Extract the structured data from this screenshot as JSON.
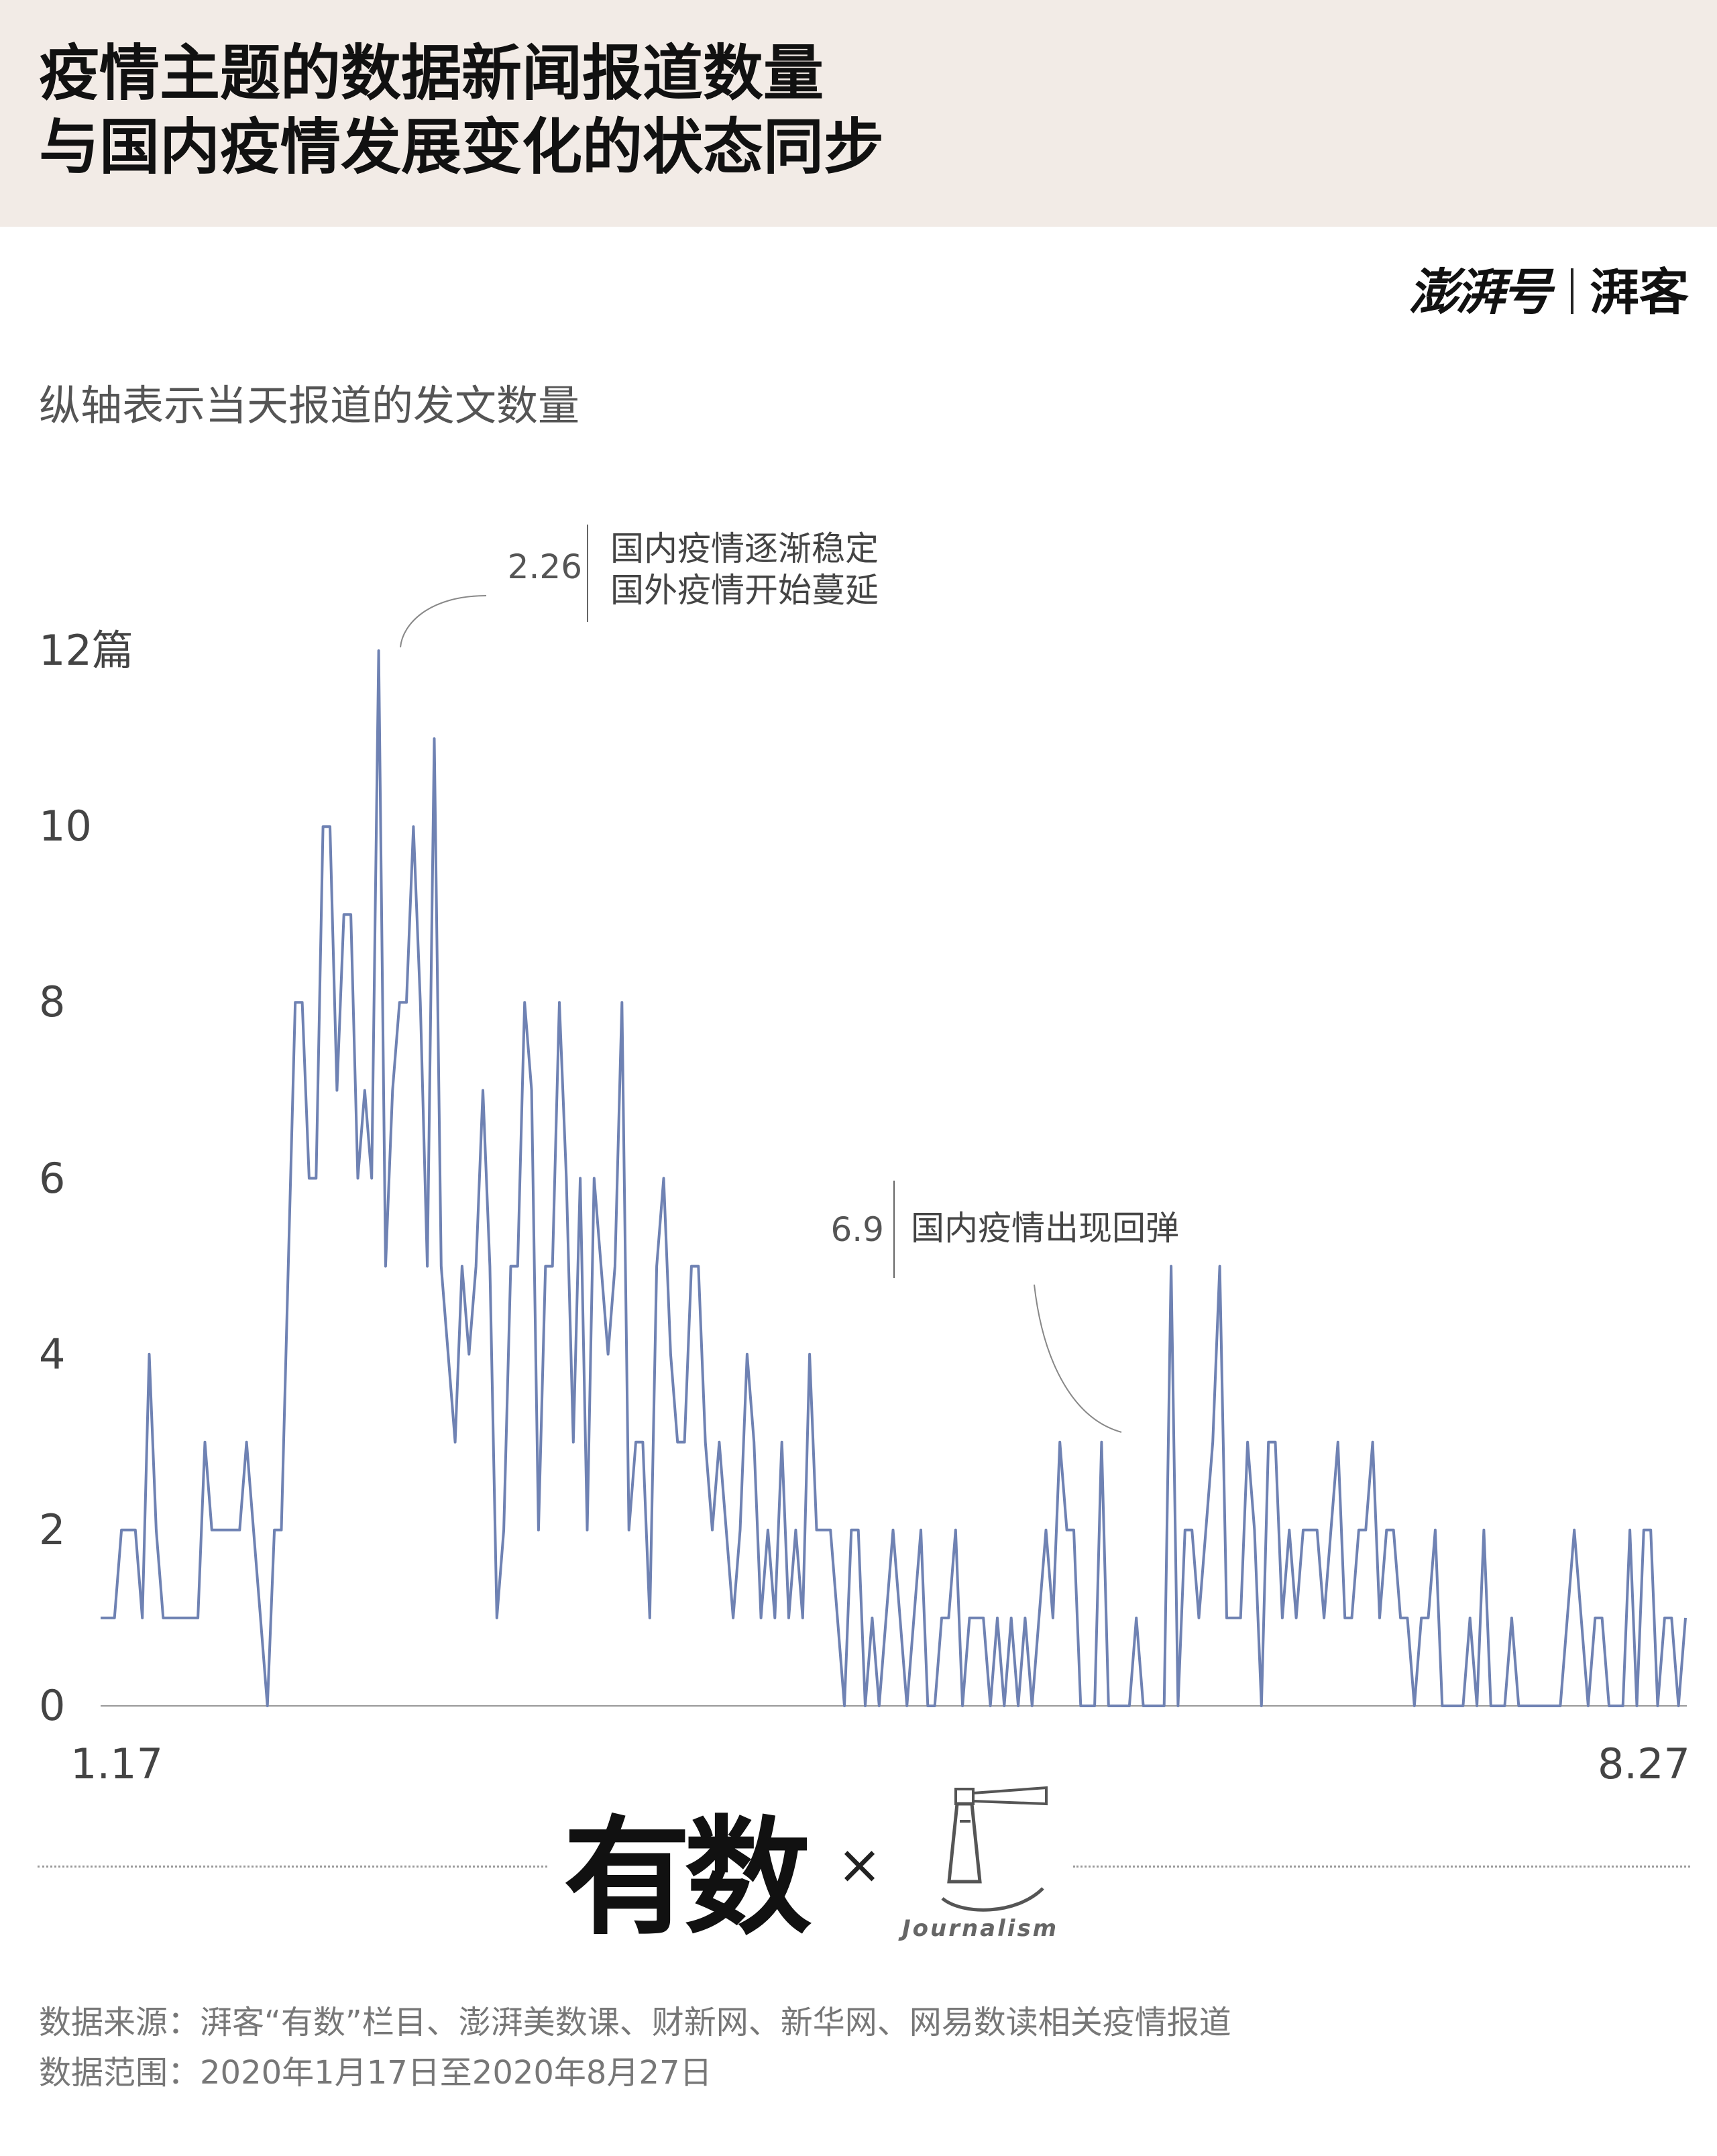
{
  "header": {
    "title_line1": "疫情主题的数据新闻报道数量",
    "title_line2": "与国内疫情发展变化的状态同步",
    "background": "#f2ebe6"
  },
  "brand": {
    "left": "澎湃号",
    "right": "湃客"
  },
  "subtitle": "纵轴表示当天报道的发文数量",
  "annotations": [
    {
      "date": "2.26",
      "text_line1": "国内疫情逐渐稳定",
      "text_line2": "国外疫情开始蔓延"
    },
    {
      "date": "6.9",
      "text_line1": "国内疫情出现回弹"
    }
  ],
  "chart_data": {
    "type": "line",
    "line_color": "#6f82b3",
    "x_start_label": "1.17",
    "x_end_label": "8.27",
    "y_ticks": [
      "12篇",
      "10",
      "8",
      "6",
      "4",
      "2",
      "0"
    ],
    "ylim": [
      0,
      12
    ],
    "grid": false,
    "values": [
      1,
      1,
      1,
      2,
      2,
      2,
      1,
      4,
      2,
      1,
      1,
      1,
      1,
      1,
      1,
      3,
      2,
      2,
      2,
      2,
      2,
      3,
      2,
      1,
      0,
      2,
      2,
      5,
      8,
      8,
      6,
      6,
      10,
      10,
      7,
      9,
      9,
      6,
      7,
      6,
      12,
      5,
      7,
      8,
      8,
      10,
      8,
      5,
      11,
      5,
      4,
      3,
      5,
      4,
      5,
      7,
      5,
      1,
      2,
      5,
      5,
      8,
      7,
      2,
      5,
      5,
      8,
      6,
      3,
      6,
      2,
      6,
      5,
      4,
      5,
      8,
      2,
      3,
      3,
      1,
      5,
      6,
      4,
      3,
      3,
      5,
      5,
      3,
      2,
      3,
      2,
      1,
      2,
      4,
      3,
      1,
      2,
      1,
      3,
      1,
      2,
      1,
      4,
      2,
      2,
      2,
      1,
      0,
      2,
      2,
      0,
      1,
      0,
      1,
      2,
      1,
      0,
      1,
      2,
      0,
      0,
      1,
      1,
      2,
      0,
      1,
      1,
      1,
      0,
      1,
      0,
      1,
      0,
      1,
      0,
      1,
      2,
      1,
      3,
      2,
      2,
      0,
      0,
      0,
      3,
      0,
      0,
      0,
      0,
      1,
      0,
      0,
      0,
      0,
      5,
      0,
      2,
      2,
      1,
      2,
      3,
      5,
      1,
      1,
      1,
      3,
      2,
      0,
      3,
      3,
      1,
      2,
      1,
      2,
      2,
      2,
      1,
      2,
      3,
      1,
      1,
      2,
      2,
      3,
      1,
      2,
      2,
      1,
      1,
      0,
      1,
      1,
      2,
      0,
      0,
      0,
      0,
      1,
      0,
      2,
      0,
      0,
      0,
      1,
      0,
      0,
      0,
      0,
      0,
      0,
      0,
      1,
      2,
      1,
      0,
      1,
      1,
      0,
      0,
      0,
      2,
      0,
      2,
      2,
      0,
      1,
      1,
      0,
      1
    ]
  },
  "logos": {
    "youshu": "有数",
    "times": "×",
    "journalism": "Journalism"
  },
  "footer": {
    "source": "数据来源：湃客“有数”栏目、澎湃美数课、财新网、新华网、网易数读相关疫情报道",
    "range": "数据范围：2020年1月17日至2020年8月27日"
  }
}
